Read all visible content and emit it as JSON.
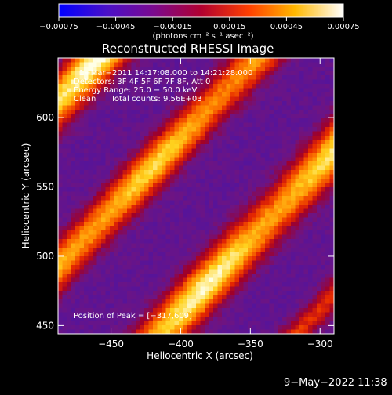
{
  "chart_data": {
    "type": "heatmap",
    "title": "Reconstructed RHESSI Image",
    "xlabel": "Heliocentric X (arcsec)",
    "ylabel": "Heliocentric Y (arcsec)",
    "xlim": [
      -488,
      -290
    ],
    "ylim": [
      444,
      643
    ],
    "xticks": [
      -450,
      -400,
      -350,
      -300
    ],
    "xtick_labels": [
      "−450",
      "−400",
      "−350",
      "−300"
    ],
    "yticks": [
      450,
      500,
      550,
      600
    ],
    "ytick_labels": [
      "450",
      "500",
      "550",
      "600"
    ],
    "colorbar": {
      "range": [
        -0.00075,
        0.00075
      ],
      "ticks": [
        -0.00075,
        -0.00045,
        -0.00015,
        0.00015,
        0.00045,
        0.00075
      ],
      "tick_labels": [
        "−0.00075",
        "−0.00045",
        "−0.00015",
        "0.00015",
        "0.00045",
        "0.00075"
      ],
      "units_label": "(photons cm⁻² s⁻¹ asec⁻²)",
      "colormap": [
        "#0000ff",
        "#5a00b0",
        "#8a0060",
        "#c00000",
        "#ff5a00",
        "#ffc800",
        "#ffffff"
      ]
    },
    "annotations": [
      "1−Mar−2011 14:17:08.000 to 14:21:28.000",
      "Detectors: 3F 4F 5F 6F 7F 8F, Att 0",
      "Energy Range: 25.0 − 50.0 keV",
      "Clean      Total counts: 9.56E+03"
    ],
    "peak_label": "Position of Peak = [−317,609]",
    "peak_position": [
      -317,
      609
    ],
    "source_bands": [
      {
        "x": -430,
        "y": 575,
        "intensity": 0.00075
      },
      {
        "x": -400,
        "y": 510,
        "intensity": 0.0006
      },
      {
        "x": -340,
        "y": 470,
        "intensity": 0.00075
      },
      {
        "x": -317,
        "y": 609,
        "intensity": 0.00075
      }
    ]
  },
  "timestamp": "9−May−2022 11:38"
}
